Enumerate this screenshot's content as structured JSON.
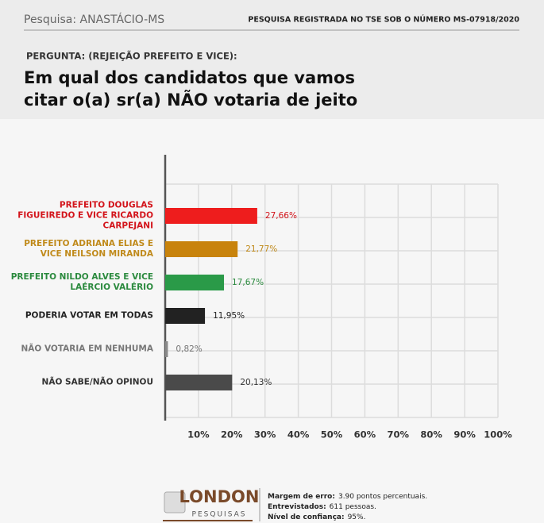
{
  "header": {
    "survey": "Pesquisa: ANASTÁCIO-MS",
    "registration": "PESQUISA REGISTRADA NO TSE SOB O NÚMERO MS-07918/2020",
    "question_label": "PERGUNTA: (REJEIÇÃO PREFEITO E VICE):",
    "question": "Em qual dos candidatos que vamos citar o(a) sr(a) NÃO votaria de jeito nenhum?"
  },
  "chart_data": {
    "type": "hbar",
    "categories": [
      "PREFEITO DOUGLAS FIGUEIREDO E VICE RICARDO CARPEJANI",
      "PREFEITO ADRIANA ELIAS E VICE NEILSON MIRANDA",
      "PREFEITO NILDO ALVES E VICE LAÉRCIO VALÉRIO",
      "PODERIA VOTAR EM TODAS",
      "NÃO VOTARIA EM NENHUMA",
      "NÃO SABE/NÃO OPINOU"
    ],
    "values": [
      27.66,
      21.77,
      17.67,
      11.95,
      0.82,
      20.13
    ],
    "value_labels": [
      "27,66%",
      "21,77%",
      "17,67%",
      "11,95%",
      "0,82%",
      "20,13%"
    ],
    "colors": [
      "#ee1d1d",
      "#c8830c",
      "#2a9a48",
      "#222222",
      "#8a8a8a",
      "#4a4a4a"
    ],
    "label_colors": [
      "#d3141b",
      "#c08a1b",
      "#2b8a3e",
      "#222222",
      "#777777",
      "#333333"
    ],
    "xlim": [
      0,
      100
    ],
    "xticks": [
      {
        "value": 10,
        "label": "10%"
      },
      {
        "value": 20,
        "label": "20%"
      },
      {
        "value": 30,
        "label": "30%"
      },
      {
        "value": 40,
        "label": "40%"
      },
      {
        "value": 50,
        "label": "50%"
      },
      {
        "value": 60,
        "label": "60%"
      },
      {
        "value": 70,
        "label": "70%"
      },
      {
        "value": 80,
        "label": "80%"
      },
      {
        "value": 90,
        "label": "90%"
      },
      {
        "value": 100,
        "label": "100%"
      }
    ],
    "grid": true
  },
  "footer": {
    "brand": "LONDON",
    "brand_sub": "PESQUISAS",
    "notes": [
      {
        "label": "Margem de erro:",
        "text": "3.90 pontos percentuais."
      },
      {
        "label": "Entrevistados:",
        "text": "611 pessoas."
      },
      {
        "label": "Nível de confiança:",
        "text": "95%."
      }
    ]
  }
}
